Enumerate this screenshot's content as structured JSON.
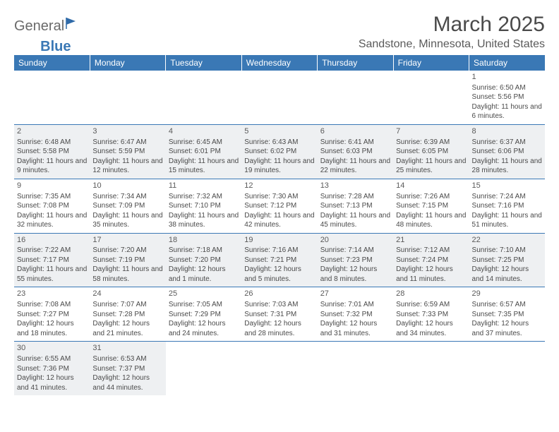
{
  "branding": {
    "logo_part1": "General",
    "logo_part2": "Blue",
    "logo_color1": "#6a6a6a",
    "logo_color2": "#3a78b5",
    "flag_color": "#2f6aa8"
  },
  "header": {
    "title": "March 2025",
    "subtitle": "Sandstone, Minnesota, United States"
  },
  "style": {
    "header_bg": "#3a78b5",
    "header_text": "#ffffff",
    "cell_border": "#3a78b5",
    "shaded_bg": "#eef0f2",
    "text_color": "#4a4a4a",
    "title_fontsize": 30,
    "subtitle_fontsize": 16,
    "dayhead_fontsize": 12,
    "cell_fontsize": 10
  },
  "days": [
    "Sunday",
    "Monday",
    "Tuesday",
    "Wednesday",
    "Thursday",
    "Friday",
    "Saturday"
  ],
  "weeks": [
    [
      {
        "n": "",
        "sr": "",
        "ss": "",
        "dl": ""
      },
      {
        "n": "",
        "sr": "",
        "ss": "",
        "dl": ""
      },
      {
        "n": "",
        "sr": "",
        "ss": "",
        "dl": ""
      },
      {
        "n": "",
        "sr": "",
        "ss": "",
        "dl": ""
      },
      {
        "n": "",
        "sr": "",
        "ss": "",
        "dl": ""
      },
      {
        "n": "",
        "sr": "",
        "ss": "",
        "dl": ""
      },
      {
        "n": "1",
        "sr": "Sunrise: 6:50 AM",
        "ss": "Sunset: 5:56 PM",
        "dl": "Daylight: 11 hours and 6 minutes."
      }
    ],
    [
      {
        "n": "2",
        "sr": "Sunrise: 6:48 AM",
        "ss": "Sunset: 5:58 PM",
        "dl": "Daylight: 11 hours and 9 minutes."
      },
      {
        "n": "3",
        "sr": "Sunrise: 6:47 AM",
        "ss": "Sunset: 5:59 PM",
        "dl": "Daylight: 11 hours and 12 minutes."
      },
      {
        "n": "4",
        "sr": "Sunrise: 6:45 AM",
        "ss": "Sunset: 6:01 PM",
        "dl": "Daylight: 11 hours and 15 minutes."
      },
      {
        "n": "5",
        "sr": "Sunrise: 6:43 AM",
        "ss": "Sunset: 6:02 PM",
        "dl": "Daylight: 11 hours and 19 minutes."
      },
      {
        "n": "6",
        "sr": "Sunrise: 6:41 AM",
        "ss": "Sunset: 6:03 PM",
        "dl": "Daylight: 11 hours and 22 minutes."
      },
      {
        "n": "7",
        "sr": "Sunrise: 6:39 AM",
        "ss": "Sunset: 6:05 PM",
        "dl": "Daylight: 11 hours and 25 minutes."
      },
      {
        "n": "8",
        "sr": "Sunrise: 6:37 AM",
        "ss": "Sunset: 6:06 PM",
        "dl": "Daylight: 11 hours and 28 minutes."
      }
    ],
    [
      {
        "n": "9",
        "sr": "Sunrise: 7:35 AM",
        "ss": "Sunset: 7:08 PM",
        "dl": "Daylight: 11 hours and 32 minutes."
      },
      {
        "n": "10",
        "sr": "Sunrise: 7:34 AM",
        "ss": "Sunset: 7:09 PM",
        "dl": "Daylight: 11 hours and 35 minutes."
      },
      {
        "n": "11",
        "sr": "Sunrise: 7:32 AM",
        "ss": "Sunset: 7:10 PM",
        "dl": "Daylight: 11 hours and 38 minutes."
      },
      {
        "n": "12",
        "sr": "Sunrise: 7:30 AM",
        "ss": "Sunset: 7:12 PM",
        "dl": "Daylight: 11 hours and 42 minutes."
      },
      {
        "n": "13",
        "sr": "Sunrise: 7:28 AM",
        "ss": "Sunset: 7:13 PM",
        "dl": "Daylight: 11 hours and 45 minutes."
      },
      {
        "n": "14",
        "sr": "Sunrise: 7:26 AM",
        "ss": "Sunset: 7:15 PM",
        "dl": "Daylight: 11 hours and 48 minutes."
      },
      {
        "n": "15",
        "sr": "Sunrise: 7:24 AM",
        "ss": "Sunset: 7:16 PM",
        "dl": "Daylight: 11 hours and 51 minutes."
      }
    ],
    [
      {
        "n": "16",
        "sr": "Sunrise: 7:22 AM",
        "ss": "Sunset: 7:17 PM",
        "dl": "Daylight: 11 hours and 55 minutes."
      },
      {
        "n": "17",
        "sr": "Sunrise: 7:20 AM",
        "ss": "Sunset: 7:19 PM",
        "dl": "Daylight: 11 hours and 58 minutes."
      },
      {
        "n": "18",
        "sr": "Sunrise: 7:18 AM",
        "ss": "Sunset: 7:20 PM",
        "dl": "Daylight: 12 hours and 1 minute."
      },
      {
        "n": "19",
        "sr": "Sunrise: 7:16 AM",
        "ss": "Sunset: 7:21 PM",
        "dl": "Daylight: 12 hours and 5 minutes."
      },
      {
        "n": "20",
        "sr": "Sunrise: 7:14 AM",
        "ss": "Sunset: 7:23 PM",
        "dl": "Daylight: 12 hours and 8 minutes."
      },
      {
        "n": "21",
        "sr": "Sunrise: 7:12 AM",
        "ss": "Sunset: 7:24 PM",
        "dl": "Daylight: 12 hours and 11 minutes."
      },
      {
        "n": "22",
        "sr": "Sunrise: 7:10 AM",
        "ss": "Sunset: 7:25 PM",
        "dl": "Daylight: 12 hours and 14 minutes."
      }
    ],
    [
      {
        "n": "23",
        "sr": "Sunrise: 7:08 AM",
        "ss": "Sunset: 7:27 PM",
        "dl": "Daylight: 12 hours and 18 minutes."
      },
      {
        "n": "24",
        "sr": "Sunrise: 7:07 AM",
        "ss": "Sunset: 7:28 PM",
        "dl": "Daylight: 12 hours and 21 minutes."
      },
      {
        "n": "25",
        "sr": "Sunrise: 7:05 AM",
        "ss": "Sunset: 7:29 PM",
        "dl": "Daylight: 12 hours and 24 minutes."
      },
      {
        "n": "26",
        "sr": "Sunrise: 7:03 AM",
        "ss": "Sunset: 7:31 PM",
        "dl": "Daylight: 12 hours and 28 minutes."
      },
      {
        "n": "27",
        "sr": "Sunrise: 7:01 AM",
        "ss": "Sunset: 7:32 PM",
        "dl": "Daylight: 12 hours and 31 minutes."
      },
      {
        "n": "28",
        "sr": "Sunrise: 6:59 AM",
        "ss": "Sunset: 7:33 PM",
        "dl": "Daylight: 12 hours and 34 minutes."
      },
      {
        "n": "29",
        "sr": "Sunrise: 6:57 AM",
        "ss": "Sunset: 7:35 PM",
        "dl": "Daylight: 12 hours and 37 minutes."
      }
    ],
    [
      {
        "n": "30",
        "sr": "Sunrise: 6:55 AM",
        "ss": "Sunset: 7:36 PM",
        "dl": "Daylight: 12 hours and 41 minutes."
      },
      {
        "n": "31",
        "sr": "Sunrise: 6:53 AM",
        "ss": "Sunset: 7:37 PM",
        "dl": "Daylight: 12 hours and 44 minutes."
      },
      {
        "n": "",
        "sr": "",
        "ss": "",
        "dl": ""
      },
      {
        "n": "",
        "sr": "",
        "ss": "",
        "dl": ""
      },
      {
        "n": "",
        "sr": "",
        "ss": "",
        "dl": ""
      },
      {
        "n": "",
        "sr": "",
        "ss": "",
        "dl": ""
      },
      {
        "n": "",
        "sr": "",
        "ss": "",
        "dl": ""
      }
    ]
  ]
}
